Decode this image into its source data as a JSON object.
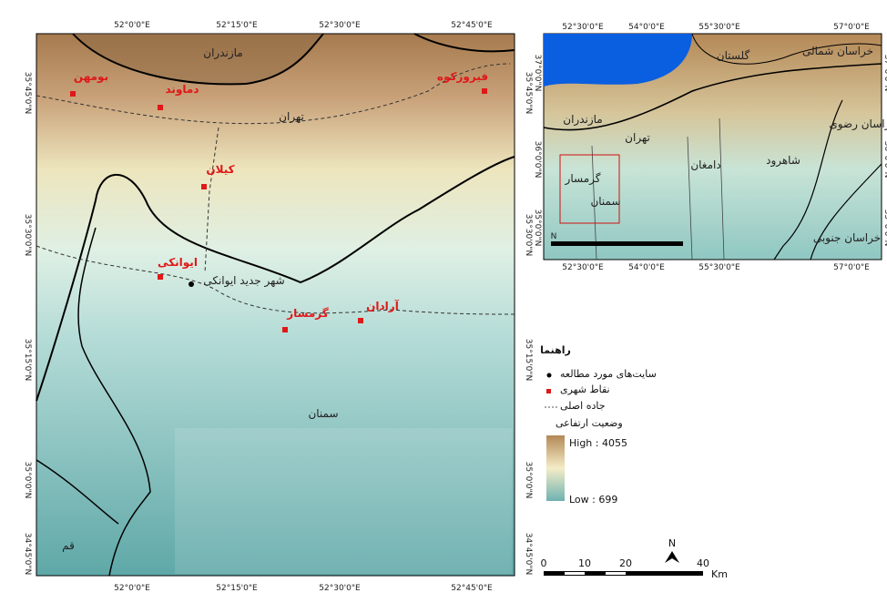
{
  "main_map": {
    "x_ticks": [
      "52°0'0\"E",
      "52°15'0\"E",
      "52°30'0\"E",
      "52°45'0\"E"
    ],
    "y_ticks": [
      "35°45'0\"N",
      "35°30'0\"N",
      "35°15'0\"N",
      "35°0'0\"N",
      "34°45'0\"N"
    ],
    "cities": [
      "بومهن",
      "دماوند",
      "فیروزکوه",
      "کیلان",
      "ایوانکی",
      "گرمسار",
      "آرادان"
    ],
    "regions": [
      "مازندران",
      "تهران",
      "شهر جدید ایوانکی",
      "سمنان",
      "قم"
    ]
  },
  "inset_map": {
    "x_ticks": [
      "52°30'0\"E",
      "54°0'0\"E",
      "55°30'0\"E",
      "57°0'0\"E"
    ],
    "y_ticks": [
      "37°0'0\"N",
      "36°0'0\"N",
      "35°0'0\"N"
    ],
    "labels": [
      "گلستان",
      "خراسان شمالی",
      "مازندران",
      "دامغان",
      "شاهرود",
      "سمنان",
      "گرمسار",
      "خراسان رضوی",
      "خراسان جنوبی",
      "تهران"
    ],
    "north": "N"
  },
  "legend": {
    "title": "راهنما",
    "items": [
      "سایت‌های مورد مطالعه",
      "نقاط شهری",
      "جاده اصلی"
    ],
    "elevation_title": "وضعیت ارتفاعی",
    "high": "High : 4055",
    "low": "Low : 699"
  },
  "scale_bar": {
    "labels": [
      "0",
      "10",
      "20",
      "40"
    ],
    "unit": "Km"
  },
  "north_arrow": "N"
}
